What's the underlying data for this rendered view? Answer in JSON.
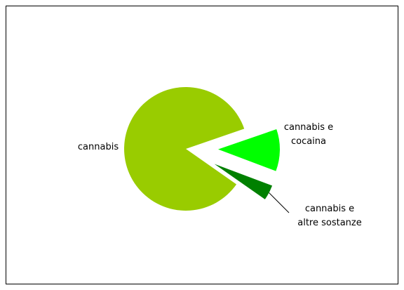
{
  "chart_data": {
    "type": "pie",
    "categories": [
      [
        "cannabis"
      ],
      [
        "cannabis e",
        "cocaina"
      ],
      [
        "cannabis e",
        "altre sostanze"
      ]
    ],
    "values": [
      85,
      11,
      4
    ],
    "colors": [
      "#99cc00",
      "#00ff00",
      "#008000"
    ],
    "exploded": [
      false,
      true,
      true
    ]
  }
}
